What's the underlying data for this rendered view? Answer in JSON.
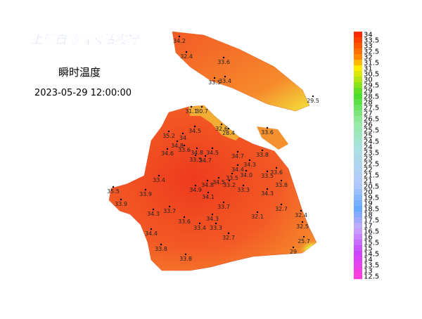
{
  "title": "上海自动气象站实况",
  "subtitle": "瞬时温度",
  "timestamp": "2023-05-29 12:00:00",
  "stations": [
    "34.2",
    "32.4",
    "33.6",
    "33.5",
    "33.4",
    "29.5",
    "33.6",
    "31.1",
    "30.7",
    "32.6",
    "28.4",
    "34.5",
    "35.2",
    "34",
    "34.8",
    "34.6",
    "33.6",
    "34.8",
    "33.5",
    "34.7",
    "34.5",
    "34.7",
    "33.8",
    "34.4",
    "34.3",
    "33.5",
    "34.0",
    "33.6",
    "33.5",
    "33.8",
    "33.4",
    "34.8",
    "34.5",
    "33.2",
    "33.3",
    "34.3",
    "35.5",
    "33.9",
    "34.9",
    "34.1",
    "33.9",
    "33.7",
    "33.7",
    "32.7",
    "34.3",
    "33.6",
    "32.1",
    "32.4",
    "34.3",
    "33.4",
    "33.3",
    "32.5",
    "34.4",
    "32.7",
    "25.7",
    "33.8",
    "33.8",
    "29"
  ],
  "legend": [
    "34",
    "33.5",
    "33",
    "32.5",
    "32",
    "31.5",
    "31",
    "30.5",
    "30",
    "29.5",
    "29",
    "28.5",
    "28",
    "27.5",
    "27",
    "26.5",
    "26",
    "25.5",
    "25",
    "24.5",
    "24",
    "23.5",
    "23",
    "22.5",
    "22",
    "21.5",
    "21",
    "20.5",
    "20",
    "19.5",
    "19",
    "18.5",
    "18",
    "17.5",
    "17",
    "16.5",
    "16",
    "15.5",
    "15",
    "14.5",
    "14",
    "13.5",
    "13",
    "12.5"
  ]
}
